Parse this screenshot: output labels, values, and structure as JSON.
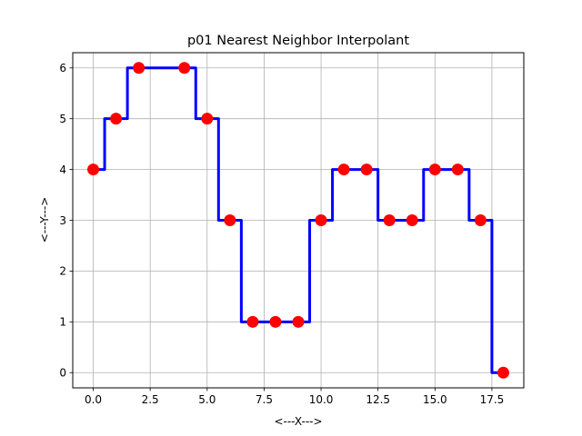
{
  "chart_data": {
    "type": "line",
    "title": "p01 Nearest Neighbor Interpolant",
    "xlabel": "<---X--->",
    "ylabel": "<---Y--->",
    "xlim": [
      -0.9,
      18.9
    ],
    "ylim": [
      -0.3,
      6.3
    ],
    "x_ticks": [
      0.0,
      2.5,
      5.0,
      7.5,
      10.0,
      12.5,
      15.0,
      17.5
    ],
    "x_tick_labels": [
      "0.0",
      "2.5",
      "5.0",
      "7.5",
      "10.0",
      "12.5",
      "15.0",
      "17.5"
    ],
    "y_ticks": [
      0,
      1,
      2,
      3,
      4,
      5,
      6
    ],
    "y_tick_labels": [
      "0",
      "1",
      "2",
      "3",
      "4",
      "5",
      "6"
    ],
    "grid": true,
    "series": [
      {
        "kind": "interpolant-line",
        "color": "#0000ff",
        "x": [
          0,
          0.5,
          0.5,
          1.5,
          1.5,
          4.5,
          4.5,
          5.5,
          5.5,
          6.5,
          6.5,
          9.5,
          9.5,
          10.5,
          10.5,
          12.5,
          12.5,
          14.5,
          14.5,
          16.5,
          16.5,
          17.5,
          17.5,
          18
        ],
        "y": [
          4,
          4,
          5,
          5,
          6,
          6,
          5,
          5,
          3,
          3,
          1,
          1,
          3,
          3,
          4,
          4,
          3,
          3,
          4,
          4,
          3,
          3,
          0,
          0
        ]
      },
      {
        "kind": "data-points",
        "color": "#ff0000",
        "x": [
          0,
          1,
          2,
          4,
          5,
          6,
          7,
          8,
          9,
          10,
          11,
          12,
          13,
          14,
          15,
          16,
          17,
          18
        ],
        "y": [
          4,
          5,
          6,
          6,
          5,
          3,
          1,
          1,
          1,
          3,
          4,
          4,
          3,
          3,
          4,
          4,
          3,
          0
        ]
      }
    ]
  }
}
